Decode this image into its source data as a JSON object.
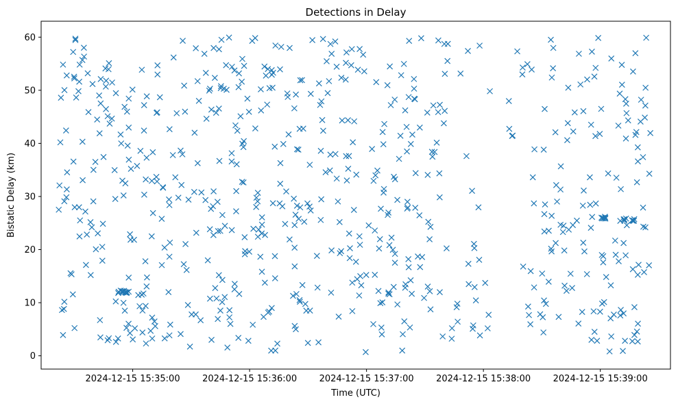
{
  "chart_data": {
    "type": "scatter",
    "title": "Detections in Delay",
    "xlabel": "Time (UTC)",
    "ylabel": "Bistatic Delay (km)",
    "x_is_time": true,
    "x_start": "2024-12-15 15:34:22",
    "x_end": "2024-12-15 15:39:26",
    "xlim": [
      "2024-12-15 15:34:13",
      "2024-12-15 15:39:36"
    ],
    "ylim": [
      -2.5,
      63
    ],
    "xticks": [
      "2024-12-15 15:35:00",
      "2024-12-15 15:36:00",
      "2024-12-15 15:37:00",
      "2024-12-15 15:38:00",
      "2024-12-15 15:39:00"
    ],
    "yticks": [
      0,
      10,
      20,
      30,
      40,
      50,
      60
    ],
    "marker": "x",
    "color": "#1f77b4",
    "grid": false,
    "legend": "none",
    "y_range": [
      0.5,
      60
    ],
    "point_count": 700
  }
}
